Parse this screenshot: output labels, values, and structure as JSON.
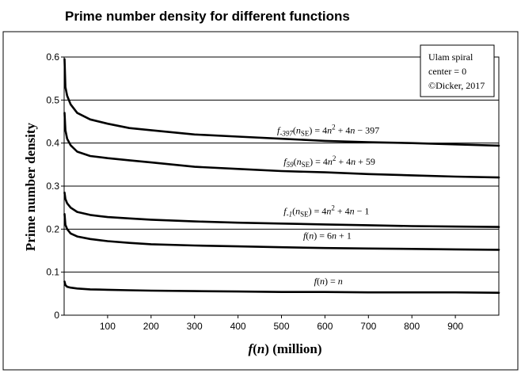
{
  "chart_data": {
    "type": "line",
    "title": "Prime number density for different functions",
    "xlabel_parts": [
      "f",
      "(",
      "n",
      ")  (million)"
    ],
    "ylabel": "Prime number density",
    "xlim": [
      0,
      1000
    ],
    "ylim": [
      0,
      0.6
    ],
    "x_ticks": [
      100,
      200,
      300,
      400,
      500,
      600,
      700,
      800,
      900
    ],
    "y_ticks": [
      0,
      0.1,
      0.2,
      0.3,
      0.4,
      0.5,
      0.6
    ],
    "x_tick_labels": [
      "100",
      "200",
      "300",
      "400",
      "500",
      "600",
      "700",
      "800",
      "900"
    ],
    "y_tick_labels": [
      "0",
      "0.1",
      "0.2",
      "0.3",
      "0.4",
      "0.5",
      "0.6"
    ],
    "grid": "horizontal",
    "annotation": [
      "Ulam spiral",
      "center = 0",
      "©Dicker, 2017"
    ],
    "series": [
      {
        "name": "f-397(nSE) = 4n2 + 4n − 397",
        "label_parts": [
          {
            "t": "f",
            "i": true
          },
          {
            "t": "-397",
            "sub": true,
            "i": true
          },
          {
            "t": "("
          },
          {
            "t": "n",
            "i": true
          },
          {
            "t": "SE",
            "sub": true
          },
          {
            "t": ") = 4"
          },
          {
            "t": "n",
            "i": true
          },
          {
            "t": "2",
            "sup": true
          },
          {
            "t": " + 4"
          },
          {
            "t": "n",
            "i": true
          },
          {
            "t": " − 397"
          }
        ],
        "label_at": [
          490,
          0.422
        ],
        "x": [
          1,
          3,
          7,
          15,
          30,
          60,
          100,
          150,
          200,
          300,
          400,
          500,
          600,
          700,
          800,
          900,
          1000
        ],
        "values": [
          0.595,
          0.53,
          0.51,
          0.49,
          0.47,
          0.455,
          0.445,
          0.435,
          0.43,
          0.42,
          0.415,
          0.41,
          0.405,
          0.402,
          0.4,
          0.397,
          0.394
        ]
      },
      {
        "name": "f59(nSE) = 4n2 + 4n + 59",
        "label_parts": [
          {
            "t": "f",
            "i": true
          },
          {
            "t": "59",
            "sub": true,
            "i": true
          },
          {
            "t": "("
          },
          {
            "t": "n",
            "i": true
          },
          {
            "t": "SE",
            "sub": true
          },
          {
            "t": ") = 4"
          },
          {
            "t": "n",
            "i": true
          },
          {
            "t": "2",
            "sup": true
          },
          {
            "t": " + 4"
          },
          {
            "t": "n",
            "i": true
          },
          {
            "t": " + 59"
          }
        ],
        "label_at": [
          505,
          0.35
        ],
        "x": [
          1,
          3,
          7,
          15,
          30,
          60,
          100,
          150,
          200,
          300,
          400,
          500,
          600,
          700,
          800,
          900,
          1000
        ],
        "values": [
          0.47,
          0.43,
          0.41,
          0.395,
          0.38,
          0.37,
          0.365,
          0.36,
          0.355,
          0.345,
          0.34,
          0.335,
          0.332,
          0.328,
          0.325,
          0.322,
          0.32
        ]
      },
      {
        "name": "f-1(nSE) = 4n2 + 4n − 1",
        "label_parts": [
          {
            "t": "f",
            "i": true
          },
          {
            "t": "-1",
            "sub": true,
            "i": true
          },
          {
            "t": "("
          },
          {
            "t": "n",
            "i": true
          },
          {
            "t": "SE",
            "sub": true
          },
          {
            "t": ") = 4"
          },
          {
            "t": "n",
            "i": true
          },
          {
            "t": "2",
            "sup": true
          },
          {
            "t": " + 4"
          },
          {
            "t": "n",
            "i": true
          },
          {
            "t": " − 1"
          }
        ],
        "label_at": [
          505,
          0.235
        ],
        "x": [
          1,
          3,
          7,
          15,
          30,
          60,
          100,
          150,
          200,
          300,
          400,
          500,
          600,
          700,
          800,
          900,
          1000
        ],
        "values": [
          0.285,
          0.27,
          0.26,
          0.25,
          0.24,
          0.233,
          0.228,
          0.225,
          0.222,
          0.218,
          0.215,
          0.213,
          0.211,
          0.209,
          0.207,
          0.206,
          0.205
        ]
      },
      {
        "name": "f(n) = 6n + 1",
        "label_parts": [
          {
            "t": "f",
            "i": true
          },
          {
            "t": "("
          },
          {
            "t": "n",
            "i": true
          },
          {
            "t": ") = 6"
          },
          {
            "t": "n",
            "i": true
          },
          {
            "t": " + 1"
          }
        ],
        "label_at": [
          550,
          0.178
        ],
        "x": [
          1,
          3,
          7,
          15,
          30,
          60,
          100,
          150,
          200,
          300,
          400,
          500,
          600,
          700,
          800,
          900,
          1000
        ],
        "values": [
          0.235,
          0.21,
          0.2,
          0.19,
          0.183,
          0.177,
          0.172,
          0.168,
          0.165,
          0.162,
          0.16,
          0.158,
          0.156,
          0.155,
          0.154,
          0.153,
          0.152
        ]
      },
      {
        "name": "f(n) = n",
        "label_parts": [
          {
            "t": "f",
            "i": true
          },
          {
            "t": "("
          },
          {
            "t": "n",
            "i": true
          },
          {
            "t": ") = "
          },
          {
            "t": "n",
            "i": true
          }
        ],
        "label_at": [
          575,
          0.072
        ],
        "x": [
          1,
          3,
          7,
          15,
          30,
          60,
          100,
          150,
          200,
          300,
          400,
          500,
          600,
          700,
          800,
          900,
          1000
        ],
        "values": [
          0.078,
          0.07,
          0.066,
          0.064,
          0.062,
          0.06,
          0.059,
          0.058,
          0.057,
          0.056,
          0.055,
          0.054,
          0.054,
          0.053,
          0.053,
          0.053,
          0.052
        ]
      }
    ]
  }
}
